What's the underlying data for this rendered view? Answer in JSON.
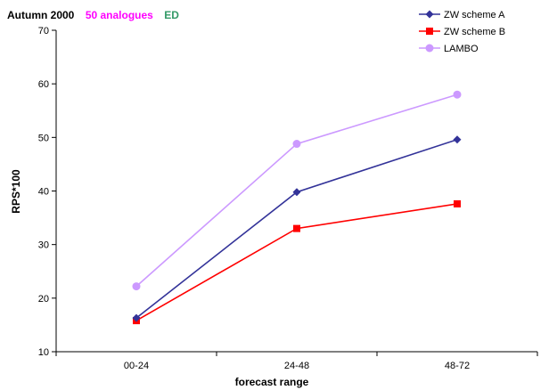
{
  "chart_data": {
    "type": "line",
    "title_parts": [
      {
        "text": "Autumn 2000",
        "color": "#000000"
      },
      {
        "text": "50 analogues",
        "color": "#ff00ff"
      },
      {
        "text": "ED",
        "color": "#339966"
      }
    ],
    "xlabel": "forecast range",
    "ylabel": "RPS*100",
    "categories": [
      "00-24",
      "24-48",
      "48-72"
    ],
    "ylim": [
      10,
      70
    ],
    "yticks": [
      10,
      20,
      30,
      40,
      50,
      60,
      70
    ],
    "legend_position": "top-right",
    "grid": false,
    "series": [
      {
        "name": "ZW scheme A",
        "color": "#333399",
        "marker": "diamond",
        "values": [
          16.3,
          39.8,
          49.6
        ]
      },
      {
        "name": "ZW scheme B",
        "color": "#ff0000",
        "marker": "square",
        "values": [
          15.8,
          33.0,
          37.6
        ]
      },
      {
        "name": "LAMBO",
        "color": "#cc99ff",
        "marker": "circle",
        "values": [
          22.2,
          48.8,
          58.0
        ]
      }
    ]
  }
}
